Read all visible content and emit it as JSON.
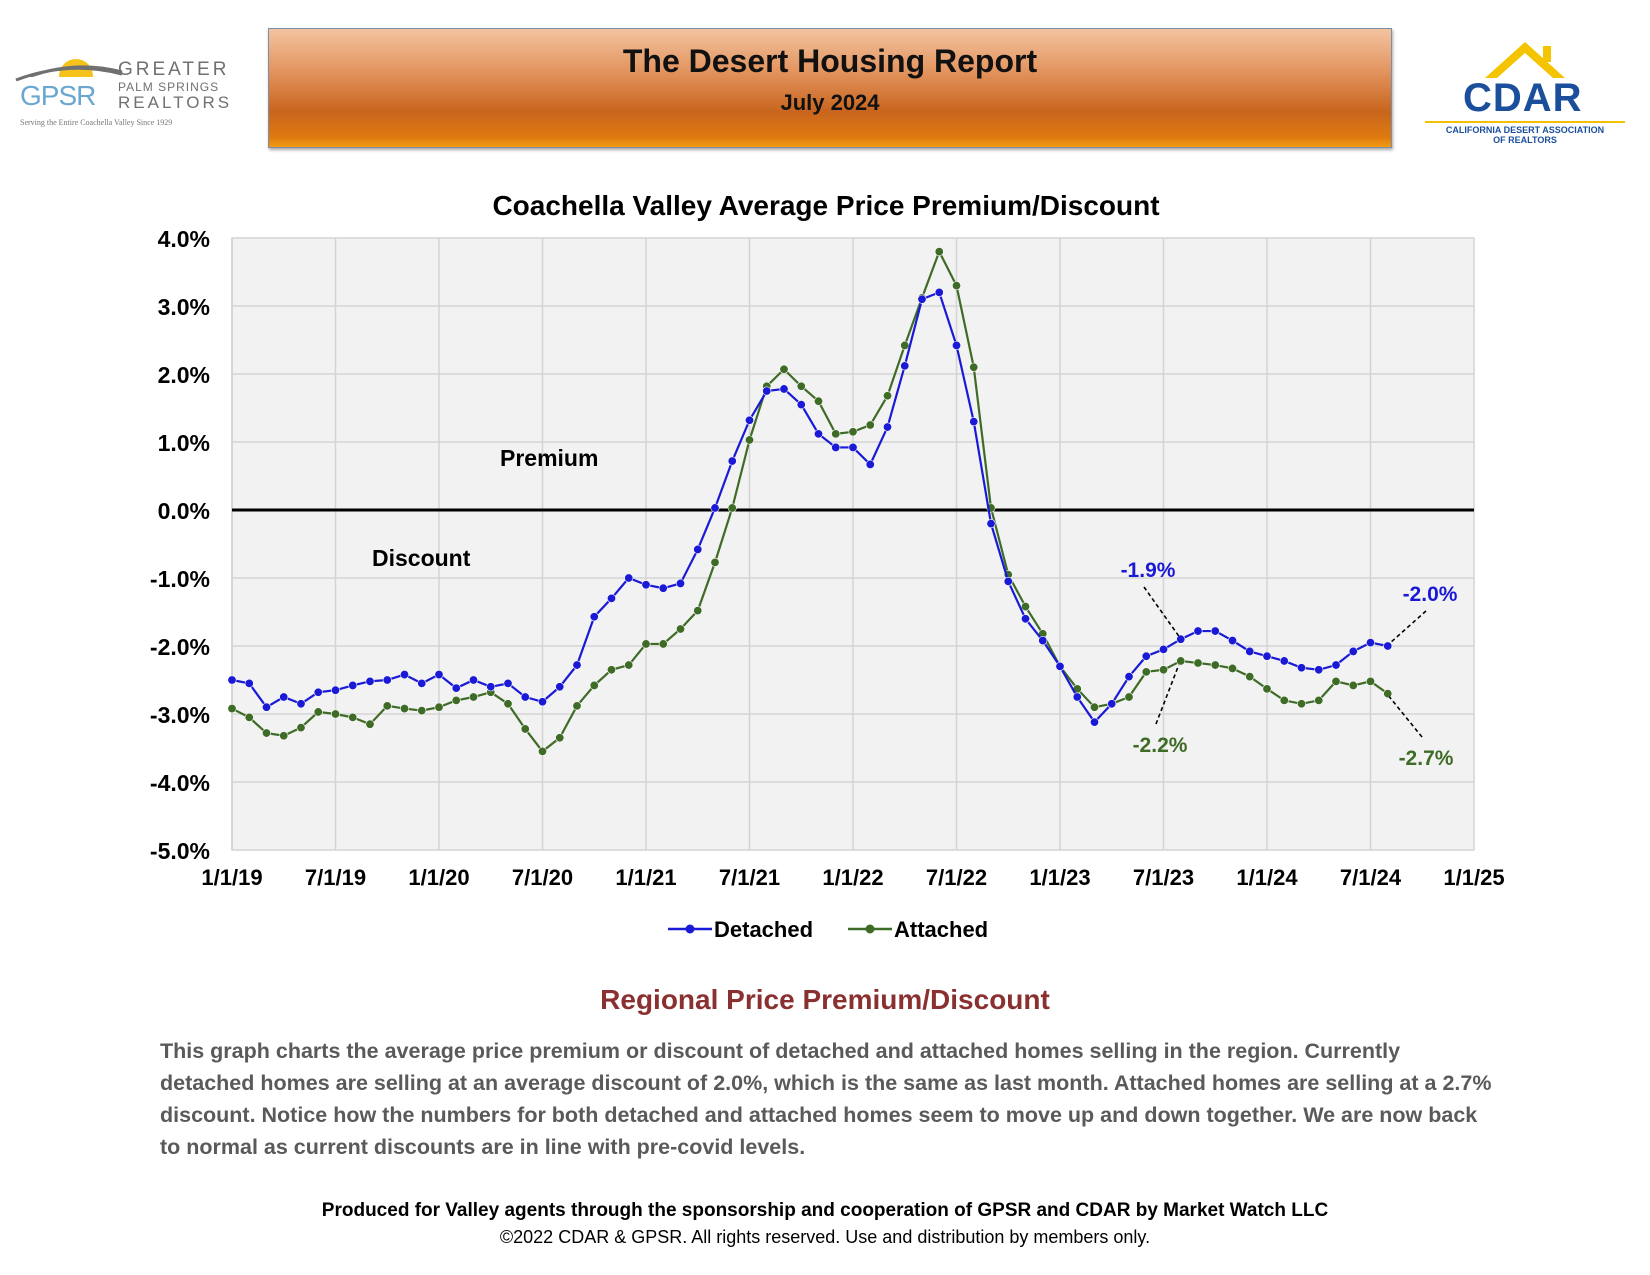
{
  "header": {
    "report_title": "The Desert Housing Report",
    "report_date": "July 2024",
    "gpsr_logo": {
      "mark": "GPSR",
      "words_1": "GREATER",
      "words_2": "PALM SPRINGS",
      "words_3": "REALTORS",
      "tagline": "Serving the Entire Coachella Valley Since 1929"
    },
    "cdar_logo": {
      "mark": "CDAR",
      "tagline_1": "CALIFORNIA DESERT ASSOCIATION",
      "tagline_2": "OF REALTORS"
    }
  },
  "chart_data": {
    "type": "line",
    "title": "Coachella Valley Average Price Premium/Discount",
    "xlabel": "",
    "ylabel": "",
    "ylim": [
      -5.0,
      4.0
    ],
    "y_ticks": [
      "4.0%",
      "3.0%",
      "2.0%",
      "1.0%",
      "0.0%",
      "-1.0%",
      "-2.0%",
      "-3.0%",
      "-4.0%",
      "-5.0%"
    ],
    "x_ticks": [
      "1/1/19",
      "7/1/19",
      "1/1/20",
      "7/1/20",
      "1/1/21",
      "7/1/21",
      "1/1/22",
      "7/1/22",
      "1/1/23",
      "7/1/23",
      "1/1/24",
      "7/1/24",
      "1/1/25"
    ],
    "x_start": "2019-01",
    "x_end": "2025-01",
    "grid": true,
    "legend_position": "bottom",
    "region_labels": [
      "Premium",
      "Discount"
    ],
    "colors": {
      "detached": "#1a1ad6",
      "attached": "#3e6b26",
      "plot_bg": "#f2f2f2",
      "grid": "#d4d4d4"
    },
    "series": [
      {
        "name": "Detached",
        "start": "2019-01",
        "values": [
          -2.5,
          -2.55,
          -2.9,
          -2.75,
          -2.85,
          -2.68,
          -2.65,
          -2.58,
          -2.52,
          -2.5,
          -2.42,
          -2.55,
          -2.42,
          -2.62,
          -2.5,
          -2.6,
          -2.55,
          -2.75,
          -2.82,
          -2.6,
          -2.28,
          -1.57,
          -1.3,
          -1.0,
          -1.1,
          -1.15,
          -1.08,
          -0.58,
          0.03,
          0.72,
          1.32,
          1.75,
          1.78,
          1.55,
          1.12,
          0.92,
          0.92,
          0.67,
          1.22,
          2.12,
          3.1,
          3.2,
          2.42,
          1.3,
          -0.2,
          -1.05,
          -1.6,
          -1.92,
          -2.3,
          -2.75,
          -3.12,
          -2.85,
          -2.45,
          -2.15,
          -2.05,
          -1.9,
          -1.78,
          -1.78,
          -1.92,
          -2.08,
          -2.15,
          -2.22,
          -2.32,
          -2.35,
          -2.28,
          -2.08,
          -1.95,
          -2.0
        ]
      },
      {
        "name": "Attached",
        "start": "2019-01",
        "values": [
          -2.92,
          -3.05,
          -3.28,
          -3.32,
          -3.2,
          -2.97,
          -3.0,
          -3.05,
          -3.15,
          -2.88,
          -2.92,
          -2.95,
          -2.9,
          -2.8,
          -2.75,
          -2.68,
          -2.85,
          -3.22,
          -3.55,
          -3.35,
          -2.88,
          -2.58,
          -2.35,
          -2.28,
          -1.97,
          -1.97,
          -1.75,
          -1.48,
          -0.77,
          0.03,
          1.03,
          1.82,
          2.07,
          1.82,
          1.6,
          1.12,
          1.15,
          1.25,
          1.68,
          2.42,
          3.12,
          3.8,
          3.3,
          2.1,
          0.03,
          -0.95,
          -1.42,
          -1.82,
          -2.3,
          -2.63,
          -2.9,
          -2.85,
          -2.75,
          -2.38,
          -2.35,
          -2.22,
          -2.25,
          -2.28,
          -2.33,
          -2.45,
          -2.63,
          -2.8,
          -2.85,
          -2.8,
          -2.52,
          -2.58,
          -2.52,
          -2.7
        ]
      }
    ],
    "annotations": [
      {
        "text": "-1.9%",
        "series": "Detached",
        "point_date": "2023-08"
      },
      {
        "text": "-2.2%",
        "series": "Attached",
        "point_date": "2023-08"
      },
      {
        "text": "-2.0%",
        "series": "Detached",
        "point_date": "2024-08"
      },
      {
        "text": "-2.7%",
        "series": "Attached",
        "point_date": "2024-08"
      }
    ]
  },
  "section": {
    "title": "Regional Price Premium/Discount",
    "body": "This graph charts the average price premium or discount of detached and attached homes selling in the region. Currently detached homes are selling at an average discount of 2.0%, which is the same as last month. Attached homes are selling at a 2.7% discount. Notice how the numbers for both detached and attached homes seem to move up and down together. We are now back to normal as current discounts are in line with pre-covid levels."
  },
  "footer": {
    "credit": "Produced for Valley agents through the sponsorship and cooperation of GPSR and CDAR by Market Watch LLC",
    "copyright": "©2022 CDAR & GPSR.  All rights reserved.  Use and distribution by members only."
  }
}
